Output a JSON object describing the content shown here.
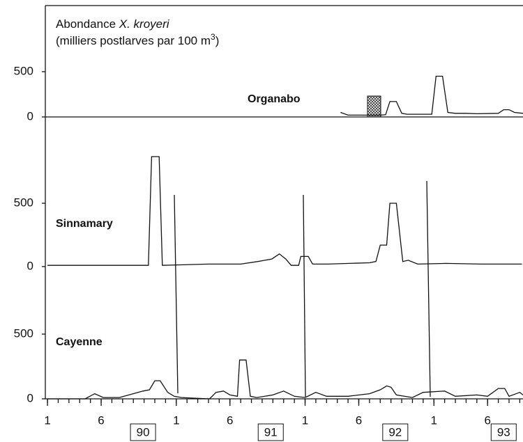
{
  "chart_data": [
    {
      "type": "line",
      "title": "Abondance",
      "title_italic": "X. kroyeri",
      "subtitle": "(milliers postlarves par 100 m",
      "subtitle_sup": "3",
      "subtitle_end": ")",
      "name": "Organabo",
      "color": "#111111",
      "ylim": [
        0,
        1200
      ],
      "yticks": [
        0,
        500
      ],
      "x": [
        27.3,
        28,
        31,
        31.5,
        31.9,
        32.5,
        33,
        33.5,
        35.8,
        36.2,
        36.8,
        37.3,
        38,
        39,
        40,
        42,
        42.5,
        43,
        43.5,
        44.3
      ],
      "values": [
        50,
        20,
        20,
        25,
        170,
        170,
        40,
        30,
        30,
        450,
        450,
        50,
        40,
        40,
        35,
        40,
        80,
        80,
        50,
        40
      ]
    },
    {
      "type": "line",
      "name": "Sinnamary",
      "color": "#111111",
      "ylim": [
        0,
        1000
      ],
      "yticks": [
        0,
        500
      ],
      "x": [
        0,
        9.4,
        9.7,
        10.4,
        10.7,
        15,
        18,
        19.6,
        20.9,
        21.6,
        22.2,
        22.7,
        23.4,
        23.6,
        24.3,
        24.7,
        26.1,
        30,
        30.6,
        31,
        31.6,
        31.9,
        32.5,
        33.1,
        33.6,
        34.5,
        37.1,
        40.4,
        44.2
      ],
      "values": [
        10,
        10,
        868,
        868,
        10,
        20,
        20,
        40,
        60,
        100,
        60,
        10,
        10,
        80,
        80,
        20,
        20,
        30,
        40,
        170,
        170,
        500,
        500,
        40,
        50,
        20,
        25,
        20,
        20
      ]
    },
    {
      "type": "line",
      "name": "Cayenne",
      "color": "#111111",
      "ylim": [
        0,
        1000
      ],
      "yticks": [
        0,
        500
      ],
      "x": [
        0,
        3.5,
        4.4,
        5.2,
        6.7,
        8.9,
        9.5,
        10,
        10.5,
        11.2,
        11.8,
        12.5,
        13.8,
        15.1,
        15.7,
        16.4,
        17,
        17.7,
        17.9,
        18.5,
        18.9,
        19.5,
        21,
        22,
        23,
        24,
        25,
        26,
        28,
        30,
        31,
        31.6,
        32,
        32.5,
        34,
        35,
        37,
        38,
        40,
        41,
        42,
        42.6,
        43,
        44,
        44.3
      ],
      "values": [
        0,
        0,
        40,
        10,
        10,
        60,
        70,
        140,
        140,
        50,
        20,
        10,
        5,
        0,
        50,
        60,
        30,
        20,
        300,
        300,
        20,
        10,
        30,
        60,
        20,
        10,
        50,
        20,
        20,
        40,
        70,
        100,
        90,
        30,
        10,
        50,
        60,
        20,
        30,
        20,
        80,
        80,
        20,
        50,
        30
      ],
      "xlim": [
        -0.2,
        44.3
      ],
      "xticks": [
        {
          "value": 0,
          "label": "1"
        },
        {
          "value": 5,
          "label": "6"
        },
        {
          "value": 12,
          "label": "1"
        },
        {
          "value": 17,
          "label": "6"
        },
        {
          "value": 24,
          "label": "1"
        },
        {
          "value": 29,
          "label": "6"
        },
        {
          "value": 36,
          "label": "1"
        },
        {
          "value": 41,
          "label": "6"
        }
      ],
      "xticks_minor": [
        0,
        1,
        2,
        3,
        4,
        5,
        6,
        7,
        8,
        9,
        10,
        11,
        12,
        13,
        14,
        15,
        16,
        17,
        18,
        19,
        20,
        21,
        22,
        23,
        24,
        25,
        26,
        27,
        28,
        29,
        30,
        31,
        32,
        33,
        34,
        35,
        36,
        37,
        38,
        39,
        40,
        41,
        42,
        43,
        44
      ],
      "year_labels": [
        {
          "value": 8.9,
          "label": "90"
        },
        {
          "value": 20.8,
          "label": "91"
        },
        {
          "value": 32.4,
          "label": "92"
        },
        {
          "value": 42.5,
          "label": "93"
        }
      ]
    }
  ]
}
